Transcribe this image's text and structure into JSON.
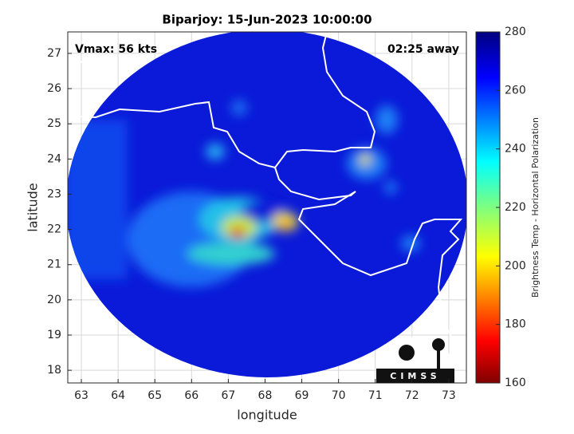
{
  "chart_data": {
    "type": "map",
    "title": "Biparjoy: 15-Jun-2023 10:00:00",
    "annotations": [
      "Vmax: 56 kts",
      "02:25 away"
    ],
    "xlabel": "longitude",
    "ylabel": "latitude",
    "xlim": [
      62.63,
      73.48
    ],
    "xticks": [
      63,
      64,
      65,
      66,
      67,
      68,
      69,
      70,
      71,
      72,
      73
    ],
    "ylim": [
      17.64,
      27.61
    ],
    "yticks": [
      18,
      19,
      20,
      21,
      22,
      23,
      24,
      25,
      26,
      27
    ],
    "grid": true,
    "colorbar": {
      "label": "Brightness Temp - Horizontal Polarization",
      "lim": [
        160,
        280
      ],
      "ticks": [
        160,
        180,
        200,
        220,
        240,
        260,
        280
      ]
    },
    "logo": "CIMSS"
  }
}
